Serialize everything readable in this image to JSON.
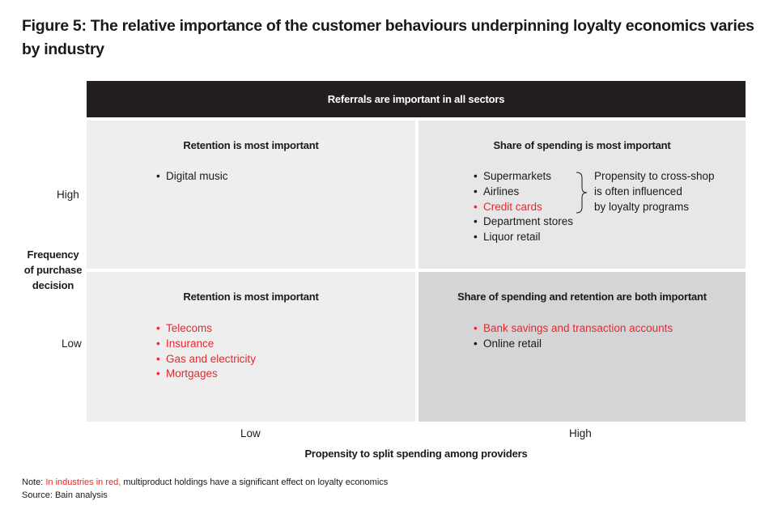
{
  "figure": {
    "title": "Figure 5: The relative importance of the customer behaviours underpinning loyalty economics varies by industry"
  },
  "banner": {
    "text": "Referrals are important in all sectors"
  },
  "quadrants": {
    "top_left": {
      "heading": "Retention is most important",
      "items": [
        {
          "text": "Digital music",
          "highlight": false
        }
      ]
    },
    "top_right": {
      "heading": "Share of spending is most important",
      "items": [
        {
          "text": "Supermarkets",
          "highlight": false
        },
        {
          "text": "Airlines",
          "highlight": false
        },
        {
          "text": "Credit cards",
          "highlight": true
        },
        {
          "text": "Department stores",
          "highlight": false
        },
        {
          "text": "Liquor retail",
          "highlight": false
        }
      ],
      "brace_note": [
        "Propensity to cross-shop",
        "is often influenced",
        "by loyalty programs"
      ]
    },
    "bottom_left": {
      "heading": "Retention is most important",
      "items": [
        {
          "text": "Telecoms",
          "highlight": true
        },
        {
          "text": "Insurance",
          "highlight": true
        },
        {
          "text": "Gas and electricity",
          "highlight": true
        },
        {
          "text": "Mortgages",
          "highlight": true
        }
      ]
    },
    "bottom_right": {
      "heading": "Share of spending and retention are both important",
      "items": [
        {
          "text": "Bank savings and transaction accounts",
          "highlight": true
        },
        {
          "text": "Online retail",
          "highlight": false
        }
      ]
    }
  },
  "y_axis": {
    "title_lines": [
      "Frequency",
      "of purchase",
      "decision"
    ],
    "high": "High",
    "low": "Low"
  },
  "x_axis": {
    "title": "Propensity to split spending among providers",
    "low": "Low",
    "high": "High"
  },
  "note": {
    "prefix": "Note: ",
    "highlight": "In industries in red,",
    "rest": " multiproduct holdings have a significant effect on loyalty economics",
    "source": "Source: Bain analysis"
  },
  "colors": {
    "highlight": "#e8282b",
    "banner": "#231f20",
    "bullet": "•"
  }
}
